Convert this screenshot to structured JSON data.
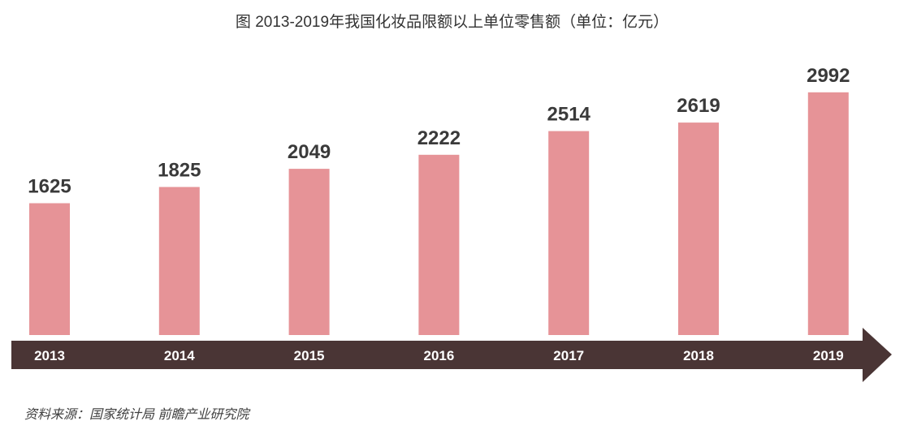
{
  "chart_data": {
    "type": "bar",
    "title": "图  2013-2019年我国化妆品限额以上单位零售额（单位：亿元）",
    "categories": [
      "2013",
      "2014",
      "2015",
      "2016",
      "2017",
      "2018",
      "2019"
    ],
    "values": [
      1625,
      1825,
      2049,
      2222,
      2514,
      2619,
      2992
    ],
    "xlabel": "",
    "ylabel": "",
    "grid": false,
    "legend": "none",
    "show_value_labels": true
  },
  "colors": {
    "bar": "#e69397",
    "axis_arrow": "#4a3535",
    "value_label": "#3a3a3a",
    "category_label": "#ffffff"
  },
  "footer": {
    "source": "资料来源：国家统计局 前瞻产业研究院"
  }
}
